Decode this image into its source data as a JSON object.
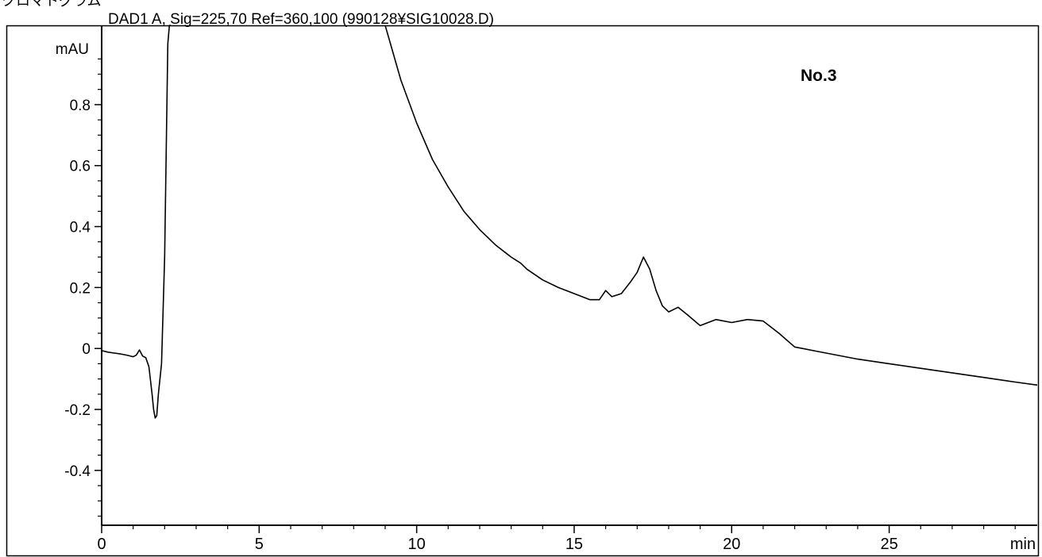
{
  "header": {
    "window_caption": "クロマトグラム",
    "signal_label": "DAD1 A, Sig=225,70 Ref=360,100 (990128¥SIG10028.D)"
  },
  "annotation": {
    "sample_label": "No.3"
  },
  "chart_data": {
    "type": "line",
    "title": "DAD1 A, Sig=225,70 Ref=360,100 (990128¥SIG10028.D)",
    "xlabel": "min",
    "ylabel": "mAU",
    "xlim": [
      0,
      29.7
    ],
    "ylim": [
      -0.58,
      1.06
    ],
    "x_ticks": [
      "0",
      "5",
      "10",
      "15",
      "20",
      "25"
    ],
    "y_ticks": [
      "0.8",
      "0.6",
      "0.4",
      "0.2",
      "0",
      "-0.2",
      "-0.4"
    ],
    "x_tick_values": [
      0,
      5,
      10,
      15,
      20,
      25
    ],
    "y_tick_values": [
      0.8,
      0.6,
      0.4,
      0.2,
      0,
      -0.2,
      -0.4
    ],
    "grid": false,
    "series": [
      {
        "x": [
          0,
          0.2,
          0.4,
          0.6,
          0.8,
          1.0,
          1.1,
          1.2,
          1.3,
          1.4,
          1.5,
          1.6,
          1.65,
          1.7,
          1.75,
          1.8,
          1.9,
          2.0,
          2.05,
          2.1,
          2.15,
          2.2,
          9.0,
          9.5,
          10.0,
          10.5,
          11.0,
          11.5,
          12.0,
          12.5,
          13.0,
          13.3,
          13.5,
          14.0,
          14.5,
          15.0,
          15.5,
          15.8,
          16.0,
          16.2,
          16.5,
          16.8,
          17.0,
          17.2,
          17.4,
          17.6,
          17.8,
          18.0,
          18.3,
          18.6,
          19.0,
          19.5,
          20.0,
          20.5,
          21.0,
          21.5,
          22.0,
          23.0,
          24.0,
          25.0,
          26.0,
          27.0,
          28.0,
          29.0,
          29.7
        ],
        "y": [
          -0.007,
          -0.012,
          -0.015,
          -0.018,
          -0.022,
          -0.027,
          -0.022,
          -0.005,
          -0.025,
          -0.03,
          -0.06,
          -0.15,
          -0.2,
          -0.228,
          -0.22,
          -0.15,
          -0.05,
          0.3,
          0.65,
          1.0,
          1.06,
          1.06,
          1.06,
          0.88,
          0.74,
          0.62,
          0.53,
          0.45,
          0.39,
          0.34,
          0.3,
          0.28,
          0.26,
          0.225,
          0.2,
          0.18,
          0.16,
          0.16,
          0.19,
          0.17,
          0.18,
          0.22,
          0.25,
          0.3,
          0.26,
          0.19,
          0.14,
          0.12,
          0.135,
          0.11,
          0.075,
          0.095,
          0.085,
          0.095,
          0.09,
          0.05,
          0.005,
          -0.015,
          -0.035,
          -0.05,
          -0.065,
          -0.08,
          -0.095,
          -0.11,
          -0.12
        ]
      }
    ]
  }
}
